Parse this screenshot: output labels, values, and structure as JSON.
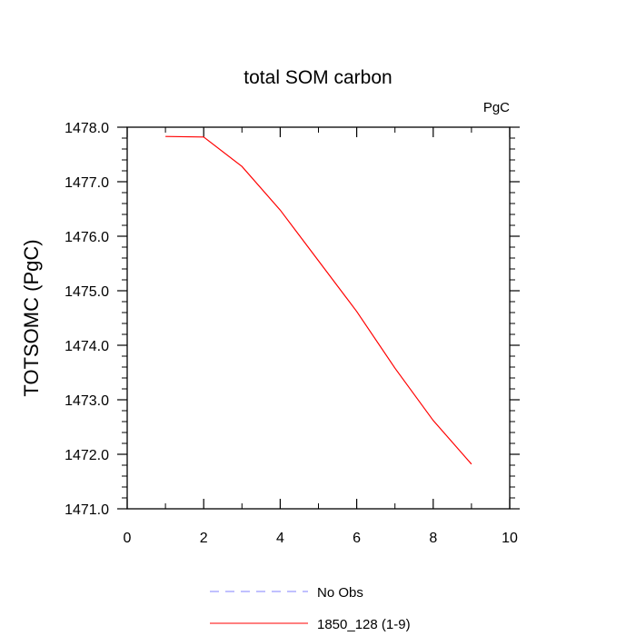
{
  "chart_data": {
    "type": "line",
    "title": "total SOM carbon",
    "units_label": "PgC",
    "xlabel": "",
    "ylabel": "TOTSOMC  (PgC)",
    "xlim": [
      0,
      10
    ],
    "ylim": [
      1471.0,
      1478.0
    ],
    "x_ticks": [
      0,
      2,
      4,
      6,
      8,
      10
    ],
    "x_tick_labels": [
      "0",
      "2",
      "4",
      "6",
      "8",
      "10"
    ],
    "y_ticks": [
      1471.0,
      1472.0,
      1473.0,
      1474.0,
      1475.0,
      1476.0,
      1477.0,
      1478.0
    ],
    "y_tick_labels": [
      "1471.0",
      "1472.0",
      "1473.0",
      "1474.0",
      "1475.0",
      "1476.0",
      "1477.0",
      "1478.0"
    ],
    "grid": false,
    "legend_position": "bottom",
    "series": [
      {
        "name": "1850_128 (1-9)",
        "color": "#ff0000",
        "dash": "solid",
        "x": [
          1,
          2,
          3,
          4,
          5,
          6,
          7,
          8,
          9
        ],
        "values": [
          1477.83,
          1477.82,
          1477.28,
          1476.48,
          1475.55,
          1474.62,
          1473.58,
          1472.62,
          1471.82
        ]
      }
    ],
    "legend": [
      {
        "label": "No Obs",
        "color": "#8080ff",
        "dash": "dashed"
      },
      {
        "label": "1850_128 (1-9)",
        "color": "#ff0000",
        "dash": "solid"
      }
    ]
  }
}
